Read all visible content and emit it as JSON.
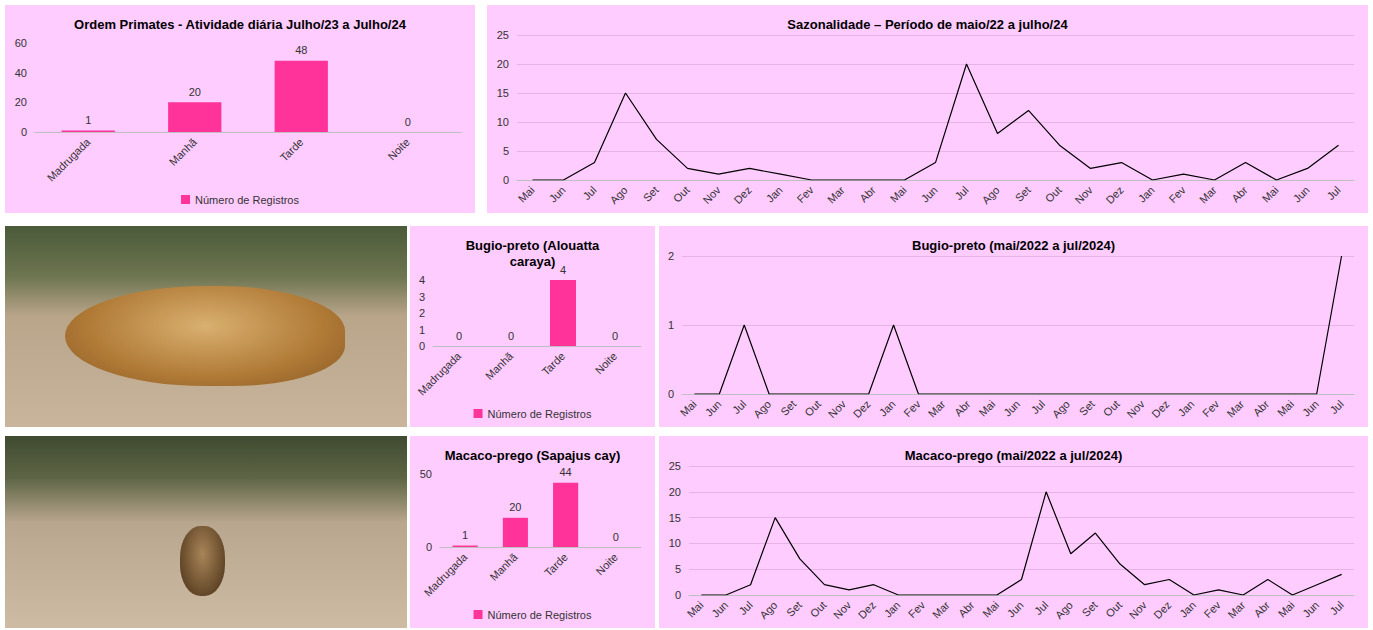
{
  "chart_data": [
    {
      "type": "bar",
      "title": "Ordem Primates - Atividade diária Julho/23 a Julho/24",
      "categories": [
        "Madrugada",
        "Manhã",
        "Tarde",
        "Noite"
      ],
      "series": [
        {
          "name": "Número de Registros",
          "color": "#ff3399",
          "values": [
            1,
            20,
            48,
            0
          ]
        }
      ],
      "ylim": [
        0,
        60
      ],
      "yticks": [
        0,
        20,
        40,
        60
      ],
      "grid": false,
      "legend": "bottom",
      "data_labels": true
    },
    {
      "type": "line",
      "title": "Sazonalidade – Período de maio/22 a julho/24",
      "categories": [
        "Mai",
        "Jun",
        "Jul",
        "Ago",
        "Set",
        "Out",
        "Nov",
        "Dez",
        "Jan",
        "Fev",
        "Mar",
        "Abr",
        "Mai",
        "Jun",
        "Jul",
        "Ago",
        "Set",
        "Out",
        "Nov",
        "Dez",
        "Jan",
        "Fev",
        "Mar",
        "Abr",
        "Mai",
        "Jun",
        "Jul"
      ],
      "values": [
        0,
        0,
        3,
        15,
        7,
        2,
        1,
        2,
        1,
        0,
        0,
        0,
        0,
        3,
        20,
        8,
        12,
        6,
        2,
        3,
        0,
        1,
        0,
        3,
        0,
        2,
        6
      ],
      "color": "#000000",
      "ylim": [
        0,
        25
      ],
      "yticks": [
        0,
        5,
        10,
        15,
        20,
        25
      ],
      "grid": true
    },
    {
      "type": "bar",
      "title": "Bugio-preto (Alouatta caraya)",
      "categories": [
        "Madrugada",
        "Manhã",
        "Tarde",
        "Noite"
      ],
      "series": [
        {
          "name": "Número de Registros",
          "color": "#ff3399",
          "values": [
            0,
            0,
            4,
            0
          ]
        }
      ],
      "ylim": [
        0,
        4
      ],
      "yticks": [
        0,
        1,
        2,
        3,
        4
      ],
      "grid": false,
      "legend": "bottom",
      "data_labels": true
    },
    {
      "type": "line",
      "title": "Bugio-preto (mai/2022 a jul/2024)",
      "categories": [
        "Mai",
        "Jun",
        "Jul",
        "Ago",
        "Set",
        "Out",
        "Nov",
        "Dez",
        "Jan",
        "Fev",
        "Mar",
        "Abr",
        "Mai",
        "Jun",
        "Jul",
        "Ago",
        "Set",
        "Out",
        "Nov",
        "Dez",
        "Jan",
        "Fev",
        "Mar",
        "Abr",
        "Mai",
        "Jun",
        "Jul"
      ],
      "values": [
        0,
        0,
        1,
        0,
        0,
        0,
        0,
        0,
        1,
        0,
        0,
        0,
        0,
        0,
        0,
        0,
        0,
        0,
        0,
        0,
        0,
        0,
        0,
        0,
        0,
        0,
        2
      ],
      "color": "#000000",
      "ylim": [
        0,
        2
      ],
      "yticks": [
        0,
        1,
        2
      ],
      "grid": true
    },
    {
      "type": "bar",
      "title": "Macaco-prego (Sapajus cay)",
      "categories": [
        "Madrugada",
        "Manhã",
        "Tarde",
        "Noite"
      ],
      "series": [
        {
          "name": "Número de Registros",
          "color": "#ff3399",
          "values": [
            1,
            20,
            44,
            0
          ]
        }
      ],
      "ylim": [
        0,
        50
      ],
      "yticks": [
        0,
        50
      ],
      "grid": false,
      "legend": "bottom",
      "data_labels": true
    },
    {
      "type": "line",
      "title": "Macaco-prego (mai/2022 a jul/2024)",
      "categories": [
        "Mai",
        "Jun",
        "Jul",
        "Ago",
        "Set",
        "Out",
        "Nov",
        "Dez",
        "Jan",
        "Fev",
        "Mar",
        "Abr",
        "Mai",
        "Jun",
        "Jul",
        "Ago",
        "Set",
        "Out",
        "Nov",
        "Dez",
        "Jan",
        "Fev",
        "Mar",
        "Abr",
        "Mai",
        "Jun",
        "Jul"
      ],
      "values": [
        0,
        0,
        2,
        15,
        7,
        2,
        1,
        2,
        0,
        0,
        0,
        0,
        0,
        3,
        20,
        8,
        12,
        6,
        2,
        3,
        0,
        1,
        0,
        3,
        0,
        2,
        4
      ],
      "color": "#000000",
      "ylim": [
        0,
        25
      ],
      "yticks": [
        0,
        5,
        10,
        15,
        20,
        25
      ],
      "grid": true
    }
  ]
}
